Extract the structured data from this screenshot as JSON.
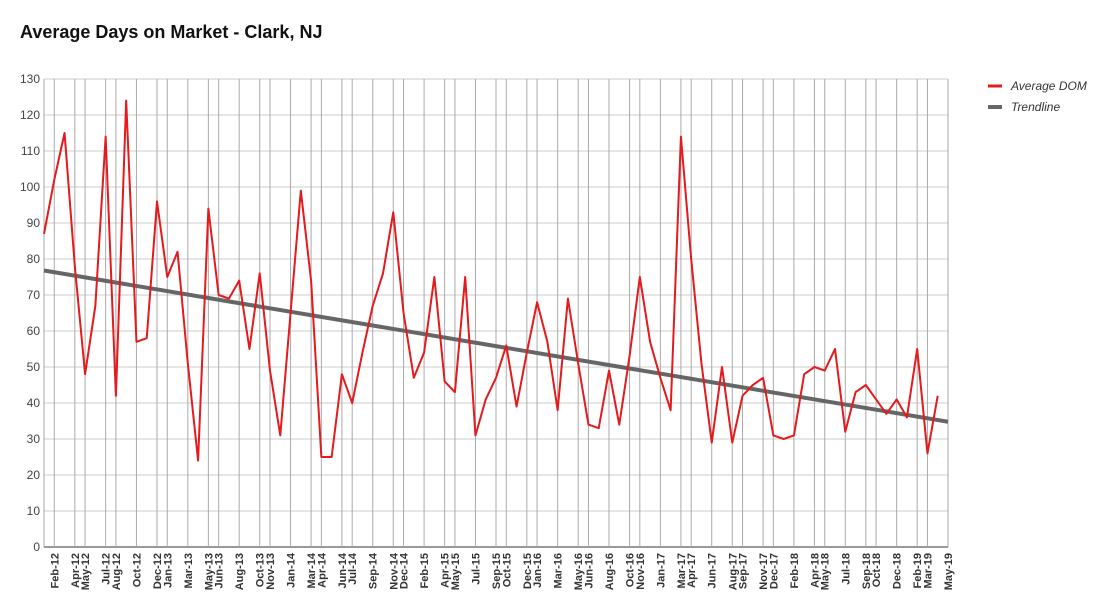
{
  "chart_data": {
    "type": "line",
    "title": "Average Days on Market - Clark, NJ",
    "xlabel": "",
    "ylabel": "",
    "ylim": [
      0,
      130
    ],
    "y_ticks": [
      0,
      10,
      20,
      30,
      40,
      50,
      60,
      70,
      80,
      90,
      100,
      110,
      120,
      130
    ],
    "grid": true,
    "legend_position": "top-right",
    "x_tick_labels": [
      "Feb-12",
      "Apr-12",
      "May-12",
      "Jul-12",
      "Aug-12",
      "Oct-12",
      "Dec-12",
      "Jan-13",
      "Mar-13",
      "May-13",
      "Jun-13",
      "Aug-13",
      "Oct-13",
      "Nov-13",
      "Jan-14",
      "Mar-14",
      "Apr-14",
      "Jun-14",
      "Jul-14",
      "Sep-14",
      "Nov-14",
      "Dec-14",
      "Feb-15",
      "Apr-15",
      "May-15",
      "Jul-15",
      "Sep-15",
      "Oct-15",
      "Dec-15",
      "Jan-16",
      "Mar-16",
      "May-16",
      "Jun-16",
      "Aug-16",
      "Oct-16",
      "Nov-16",
      "Jan-17",
      "Mar-17",
      "Apr-17",
      "Jun-17",
      "Aug-17",
      "Sep-17",
      "Nov-17",
      "Dec-17",
      "Feb-18",
      "Apr-18",
      "May-18",
      "Jul-18",
      "Sep-18",
      "Oct-18",
      "Dec-18",
      "Feb-19",
      "Mar-19",
      "May-19"
    ],
    "series": [
      {
        "name": "Average DOM",
        "color": "#e41a1c",
        "start": "Jan-12",
        "values": [
          87,
          102,
          115,
          78,
          48,
          67,
          114,
          42,
          124,
          57,
          58,
          96,
          75,
          82,
          51,
          24,
          94,
          70,
          69,
          74,
          55,
          76,
          49,
          31,
          65,
          99,
          74,
          25,
          25,
          48,
          40,
          54,
          67,
          76,
          93,
          65,
          47,
          54,
          75,
          46,
          43,
          75,
          31,
          41,
          47,
          56,
          39,
          54,
          68,
          57,
          38,
          69,
          51,
          34,
          33,
          49,
          34,
          53,
          75,
          57,
          47,
          38,
          114,
          80,
          51,
          29,
          50,
          29,
          42,
          45,
          47,
          31,
          30,
          31,
          48,
          50,
          49,
          55,
          32,
          43,
          45,
          41,
          37,
          41,
          36,
          55,
          26,
          42
        ]
      },
      {
        "name": "Trendline",
        "color": "#666666",
        "start": "Jan-12",
        "end": "May-19",
        "values": [
          76.8,
          34.8
        ]
      }
    ]
  }
}
